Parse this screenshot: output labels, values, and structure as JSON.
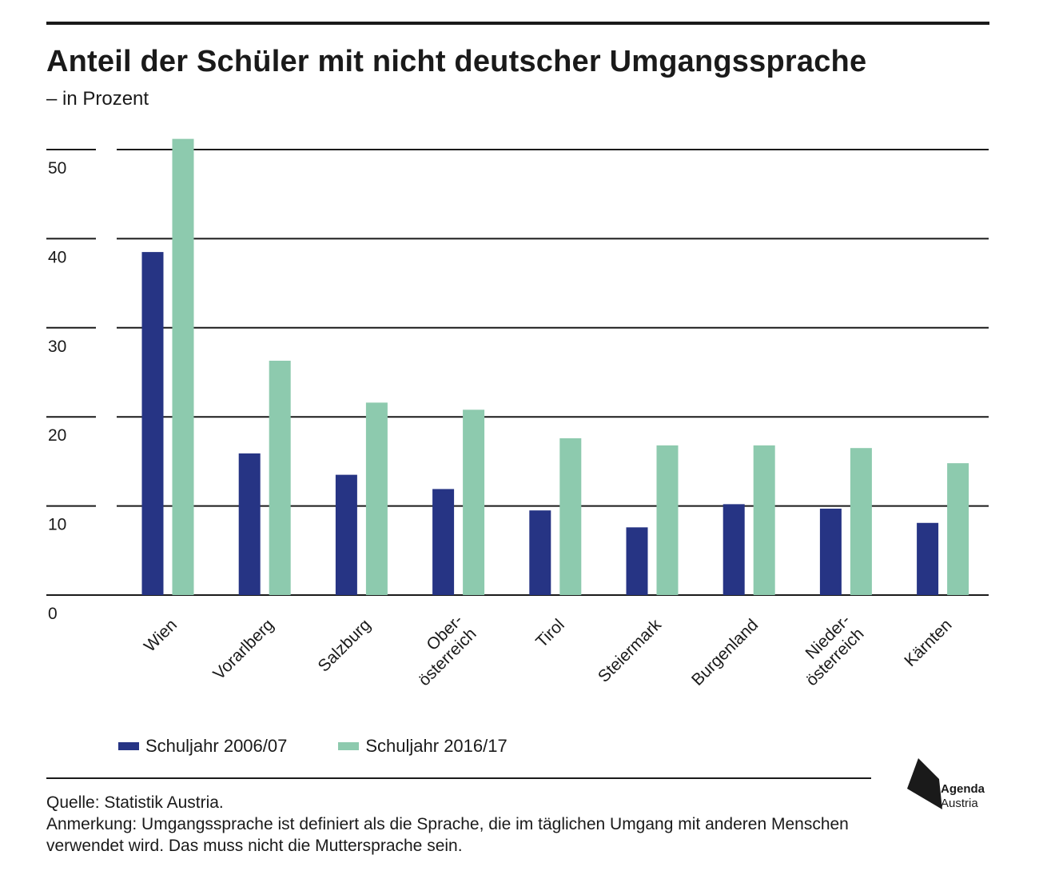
{
  "header": {
    "title": "Anteil der Schüler mit nicht deutscher Umgangssprache",
    "subtitle": "– in Prozent"
  },
  "legend": {
    "series_1": "Schuljahr 2006/07",
    "series_2": "Schuljahr 2016/17"
  },
  "footer": {
    "source": "Quelle: Statistik Austria.",
    "note": "Anmerkung: Umgangssprache ist definiert als die Sprache, die im täglichen Umgang mit anderen Menschen verwendet wird. Das muss nicht die Muttersprache sein."
  },
  "logo": {
    "line1": "Agenda",
    "line2": "Austria",
    "icon": "agenda-austria-logo-icon"
  },
  "colors": {
    "series_1": "#263484",
    "series_2": "#8dcaae",
    "grid": "#1a1a1a",
    "text": "#1a1a1a"
  },
  "chart_data": {
    "type": "bar",
    "title": "Anteil der Schüler mit nicht deutscher Umgangssprache",
    "subtitle": "– in Prozent",
    "xlabel": "",
    "ylabel": "",
    "ylim": [
      0,
      50
    ],
    "yticks": [
      0,
      10,
      20,
      30,
      40,
      50
    ],
    "grid": true,
    "legend_position": "bottom-left",
    "categories": [
      "Wien",
      "Vorarlberg",
      "Salzburg",
      "Ober-\nösterreich",
      "Tirol",
      "Steiermark",
      "Burgenland",
      "Nieder-\nösterreich",
      "Kärnten"
    ],
    "series": [
      {
        "name": "Schuljahr 2006/07",
        "values": [
          38.5,
          15.9,
          13.5,
          11.9,
          9.5,
          7.6,
          10.2,
          9.7,
          8.1
        ]
      },
      {
        "name": "Schuljahr 2016/17",
        "values": [
          51.2,
          26.3,
          21.6,
          20.8,
          17.6,
          16.8,
          16.8,
          16.5,
          14.8
        ]
      }
    ]
  }
}
